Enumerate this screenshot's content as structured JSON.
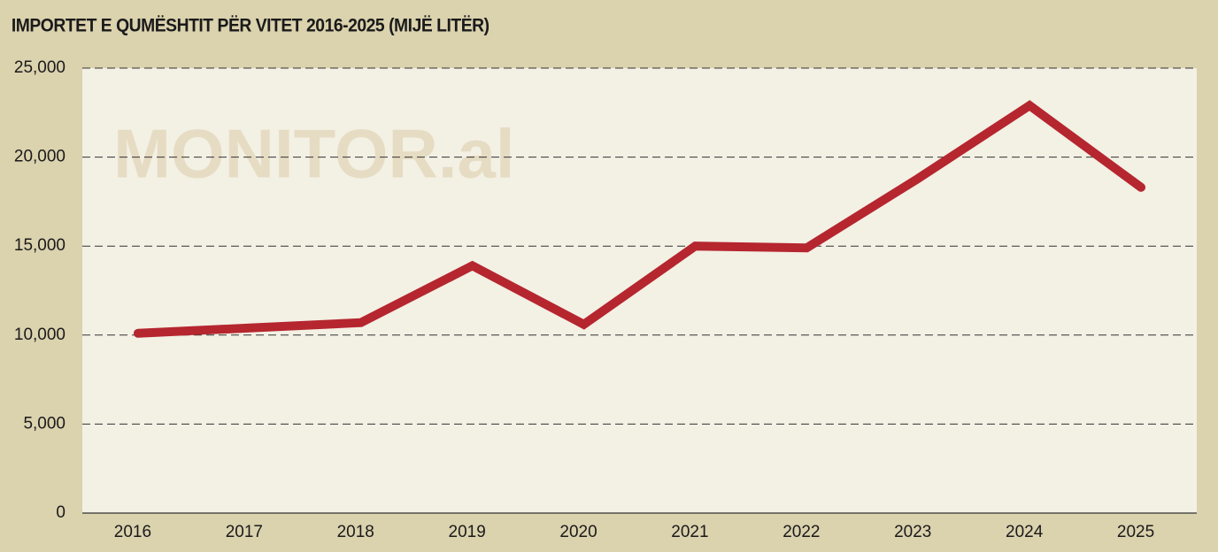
{
  "chart_data": {
    "type": "line",
    "title": "IMPORTET E QUMËSHTIT PËR VITET 2016-2025 (MIJË LITËR)",
    "watermark": "MONITOR.al",
    "categories": [
      "2016",
      "2017",
      "2018",
      "2019",
      "2020",
      "2021",
      "2022",
      "2023",
      "2024",
      "2025"
    ],
    "series": [
      {
        "name": "Importet e qumështit",
        "color": "#b5262f",
        "values": [
          10100,
          10400,
          10700,
          13900,
          10600,
          15000,
          14900,
          18800,
          22900,
          18300
        ]
      }
    ],
    "ylim": [
      0,
      25000
    ],
    "yticks": [
      0,
      {
        "value": 5000,
        "label": "5,000"
      },
      {
        "value": 10000,
        "label": "10,000"
      },
      {
        "value": 15000,
        "label": "15,000"
      },
      {
        "value": 20000,
        "label": "20,000"
      },
      {
        "value": 25000,
        "label": "25,000"
      }
    ],
    "grid": true
  }
}
